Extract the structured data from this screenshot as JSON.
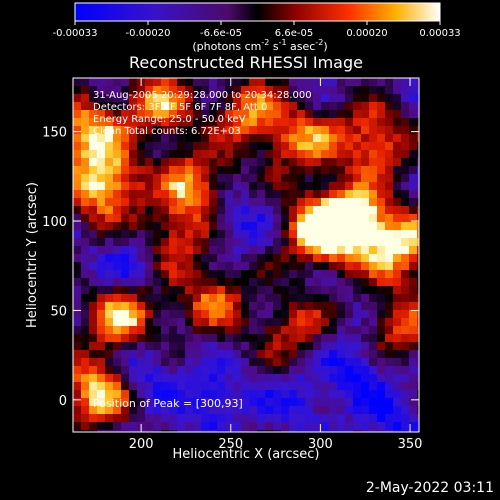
{
  "chart_data": {
    "type": "heatmap",
    "title": "Reconstructed RHESSI Image",
    "xlabel": "Heliocentric X (arcsec)",
    "ylabel": "Heliocentric Y (arcsec)",
    "xlim": [
      162,
      355
    ],
    "ylim": [
      -18,
      180
    ],
    "xticks": [
      200,
      250,
      300,
      350
    ],
    "yticks": [
      0,
      50,
      100,
      150
    ],
    "colorbar": {
      "range": [
        -0.00033,
        0.00033
      ],
      "ticks": [
        "-0.00033",
        "-0.00020",
        "-6.6e-05",
        "6.6e-05",
        "0.00020",
        "0.00033"
      ],
      "unit_prefix": "(photons cm",
      "unit_exp1": "-2",
      "unit_mid": " s",
      "unit_exp2": "-1",
      "unit_mid2": " asec",
      "unit_exp3": "-2",
      "unit_suffix": ")"
    },
    "annotation_lines": [
      "31-Aug-2005 20:29:28.000 to 20:34:28.000",
      "Detectors: 3F 4F 5F 6F 7F 8F, Att 0",
      "Energy Range: 25.0 - 50.0 keV",
      "Clean     Total counts: 6.72E+03"
    ],
    "peak_label": "Position of Peak = [300,93]",
    "peak": [
      300,
      93
    ],
    "hot_spots": [
      {
        "x": 300,
        "y": 95,
        "v": 1.0
      },
      {
        "x": 320,
        "y": 100,
        "v": 0.9
      },
      {
        "x": 180,
        "y": 120,
        "v": 0.95
      },
      {
        "x": 190,
        "y": 45,
        "v": 0.85
      },
      {
        "x": 230,
        "y": 120,
        "v": 0.75
      },
      {
        "x": 260,
        "y": 160,
        "v": 0.7
      },
      {
        "x": 345,
        "y": 85,
        "v": 0.85
      },
      {
        "x": 330,
        "y": 145,
        "v": 0.75
      },
      {
        "x": 170,
        "y": 150,
        "v": 0.8
      },
      {
        "x": 175,
        "y": 5,
        "v": 0.9
      },
      {
        "x": 240,
        "y": 55,
        "v": 0.6
      },
      {
        "x": 210,
        "y": 165,
        "v": 0.7
      },
      {
        "x": 290,
        "y": 145,
        "v": 0.65
      },
      {
        "x": 345,
        "y": 40,
        "v": 0.6
      },
      {
        "x": 285,
        "y": 40,
        "v": 0.5
      },
      {
        "x": 220,
        "y": 90,
        "v": 0.55
      }
    ],
    "cold_spots": [
      {
        "x": 200,
        "y": 20,
        "v": -0.9
      },
      {
        "x": 240,
        "y": 0,
        "v": -0.8
      },
      {
        "x": 320,
        "y": 20,
        "v": -0.85
      },
      {
        "x": 250,
        "y": 100,
        "v": -0.7
      },
      {
        "x": 195,
        "y": 75,
        "v": -0.6
      },
      {
        "x": 340,
        "y": -10,
        "v": -0.7
      },
      {
        "x": 290,
        "y": 0,
        "v": -0.6
      }
    ]
  },
  "footer": {
    "date": "2-May-2022 03:11"
  }
}
